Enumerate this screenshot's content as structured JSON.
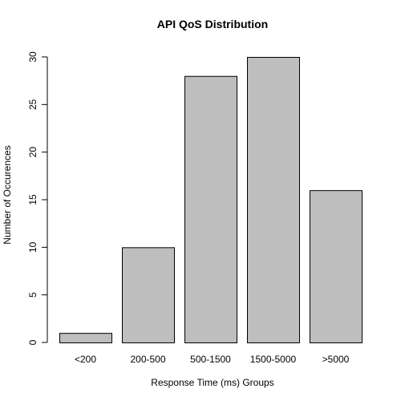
{
  "chart_data": {
    "type": "bar",
    "title": "API QoS Distribution",
    "xlabel": "Response Time (ms) Groups",
    "ylabel": "Number of Occurences",
    "categories": [
      "<200",
      "200-500",
      "500-1500",
      "1500-5000",
      ">5000"
    ],
    "values": [
      1,
      10,
      28,
      30,
      16
    ],
    "ylim": [
      0,
      30
    ],
    "yticks": [
      0,
      5,
      10,
      15,
      20,
      25,
      30
    ],
    "ytick_labels": [
      "0",
      "5",
      "10",
      "15",
      "20",
      "25",
      "30"
    ],
    "grid": false,
    "legend": false,
    "bar_color": "#bebebe",
    "bar_edge_color": "#000000"
  }
}
